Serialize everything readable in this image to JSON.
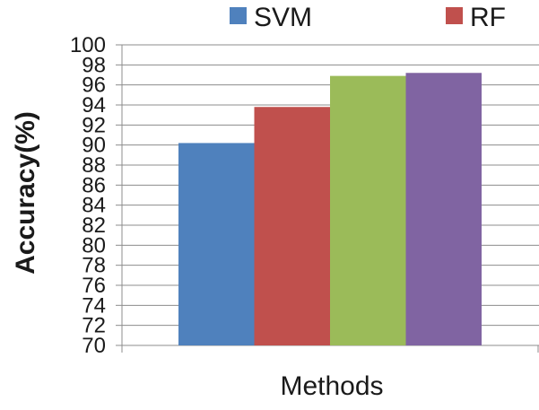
{
  "chart_data": {
    "type": "bar",
    "title": "",
    "xlabel": "Methods",
    "ylabel": "Accuracy(%)",
    "ylim": [
      70,
      100
    ],
    "ytick_step": 2,
    "grid": true,
    "legend_position": "top",
    "series": [
      {
        "name": "SVM",
        "values": [
          90.2
        ],
        "color": "#4f81bd"
      },
      {
        "name": "RF",
        "values": [
          93.8
        ],
        "color": "#c0504d"
      },
      {
        "name": "",
        "values": [
          96.9
        ],
        "color": "#9bbb59"
      },
      {
        "name": "",
        "values": [
          97.2
        ],
        "color": "#8064a2"
      }
    ],
    "legend": [
      {
        "label": "SVM",
        "color": "#4f81bd"
      },
      {
        "label": "RF",
        "color": "#c0504d"
      }
    ]
  }
}
